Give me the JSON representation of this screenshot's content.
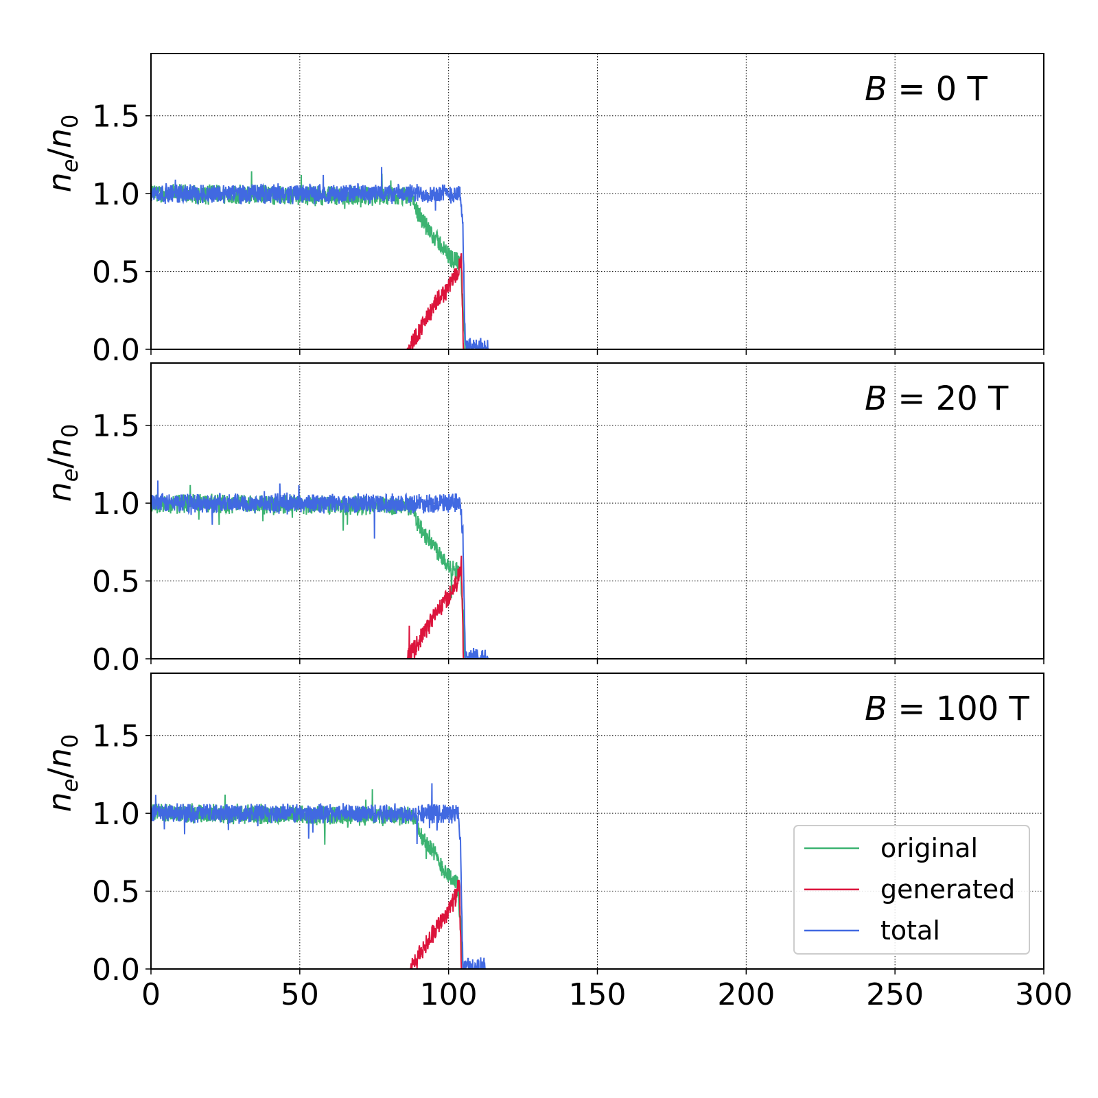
{
  "chart_data": {
    "type": "line",
    "layout": "3 stacked panels sharing x axis",
    "xlim": [
      0,
      300
    ],
    "x_ticks": [
      "0",
      "50",
      "100",
      "150",
      "200",
      "250",
      "300"
    ],
    "y_ticks": [
      "0.0",
      "0.5",
      "1.0",
      "1.5"
    ],
    "ylim": [
      0,
      1.9
    ],
    "ylabel": {
      "base": "n",
      "sub1": "e",
      "slash": "/",
      "base2": "n",
      "sub2": "0"
    },
    "grid": true,
    "legend": {
      "placement": "lower-right of bottom panel",
      "entries": [
        "original",
        "generated",
        "total"
      ]
    },
    "colors": {
      "original": "#3cb371",
      "generated": "#dc143c",
      "total": "#4169e1"
    },
    "noise_amplitude": 0.07,
    "panels": [
      {
        "annotation": {
          "var": "B",
          "eq": " = ",
          "value": "0 T"
        },
        "series": [
          {
            "name": "original",
            "x": [
              0,
              88,
              90,
              93,
              97,
              100,
              104,
              104.8,
              105.5,
              300
            ],
            "y": [
              1.0,
              0.98,
              0.85,
              0.78,
              0.68,
              0.6,
              0.55,
              0.3,
              0,
              0
            ]
          },
          {
            "name": "generated",
            "x": [
              0,
              86,
              88,
              92,
              96,
              100,
              103,
              104.3,
              105,
              300
            ],
            "y": [
              0,
              0,
              0.05,
              0.18,
              0.3,
              0.4,
              0.5,
              0.6,
              0,
              0
            ]
          },
          {
            "name": "total",
            "x": [
              0,
              104,
              104.8,
              105.6,
              106,
              113,
              113.5,
              300
            ],
            "y": [
              1.0,
              1.0,
              0.8,
              0.02,
              0.01,
              0.01,
              0,
              0
            ]
          }
        ]
      },
      {
        "annotation": {
          "var": "B",
          "eq": " = ",
          "value": "20 T"
        },
        "series": [
          {
            "name": "original",
            "x": [
              0,
              88,
              90,
              93,
              97,
              100,
              104,
              104.8,
              105.5,
              300
            ],
            "y": [
              1.0,
              0.98,
              0.85,
              0.78,
              0.68,
              0.6,
              0.55,
              0.3,
              0,
              0
            ]
          },
          {
            "name": "generated",
            "x": [
              0,
              86,
              88,
              92,
              96,
              100,
              103,
              104.3,
              105,
              300
            ],
            "y": [
              0,
              0,
              0.05,
              0.18,
              0.3,
              0.4,
              0.5,
              0.6,
              0,
              0
            ]
          },
          {
            "name": "total",
            "x": [
              0,
              104,
              104.8,
              105.6,
              106,
              113,
              113.5,
              300
            ],
            "y": [
              1.0,
              1.0,
              0.8,
              0.02,
              0.01,
              0.01,
              0,
              0
            ]
          }
        ]
      },
      {
        "annotation": {
          "var": "B",
          "eq": " = ",
          "value": "100 T"
        },
        "series": [
          {
            "name": "original",
            "x": [
              0,
              89,
              91,
              94,
              97,
              100,
              103,
              104,
              104.8,
              300
            ],
            "y": [
              1.0,
              0.98,
              0.85,
              0.78,
              0.68,
              0.6,
              0.55,
              0.3,
              0,
              0
            ]
          },
          {
            "name": "generated",
            "x": [
              0,
              87,
              89,
              92,
              96,
              100,
              102.5,
              103.6,
              104.3,
              300
            ],
            "y": [
              0,
              0,
              0.05,
              0.15,
              0.27,
              0.38,
              0.47,
              0.55,
              0,
              0
            ]
          },
          {
            "name": "total",
            "x": [
              0,
              103.2,
              104,
              104.8,
              105.3,
              112,
              112.5,
              300
            ],
            "y": [
              1.0,
              1.0,
              0.8,
              0.02,
              0.01,
              0.01,
              0,
              0
            ]
          }
        ]
      }
    ]
  }
}
